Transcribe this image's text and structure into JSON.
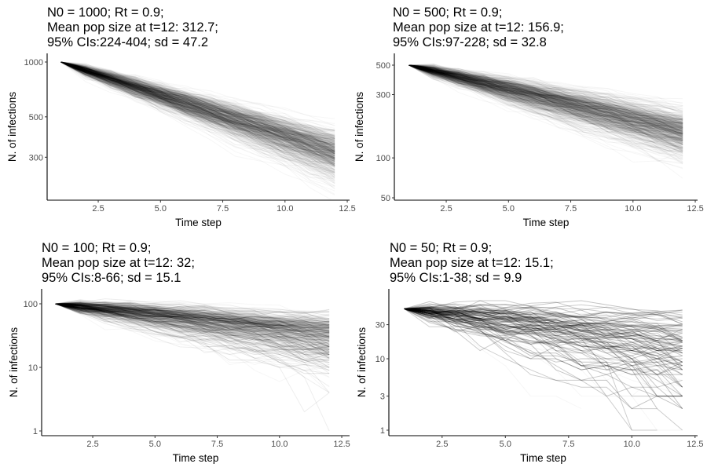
{
  "chart_data": [
    {
      "type": "line",
      "title_lines": [
        "N0 = 1000; Rt = 0.9;",
        "Mean pop size at t=12: 312.7;",
        "95% CIs:224-404; sd = 47.2"
      ],
      "N0": 1000,
      "Rt": 0.9,
      "mean_t12": 312.7,
      "ci95": [
        224,
        404
      ],
      "sd": 47.2,
      "xlabel": "Time step",
      "ylabel": "N. of infections",
      "x_ticks": [
        "2.5",
        "5.0",
        "7.5",
        "10.0",
        "12.5"
      ],
      "x_tick_values": [
        2.5,
        5,
        7.5,
        10,
        12.5
      ],
      "y_ticks": [
        "300",
        "500",
        "1000"
      ],
      "y_tick_values": [
        300,
        500,
        1000
      ],
      "y_scale": "log",
      "x_range": [
        1,
        12
      ],
      "grid": false
    },
    {
      "type": "line",
      "title_lines": [
        "N0 = 500; Rt = 0.9;",
        "Mean pop size at t=12: 156.9;",
        "95% CIs:97-228; sd = 32.8"
      ],
      "N0": 500,
      "Rt": 0.9,
      "mean_t12": 156.9,
      "ci95": [
        97,
        228
      ],
      "sd": 32.8,
      "xlabel": "Time step",
      "ylabel": "N. of infections",
      "x_ticks": [
        "2.5",
        "5.0",
        "7.5",
        "10.0",
        "12.5"
      ],
      "x_tick_values": [
        2.5,
        5,
        7.5,
        10,
        12.5
      ],
      "y_ticks": [
        "50",
        "100",
        "300",
        "500"
      ],
      "y_tick_values": [
        50,
        100,
        300,
        500
      ],
      "y_scale": "log",
      "x_range": [
        1,
        12
      ],
      "grid": false
    },
    {
      "type": "line",
      "title_lines": [
        "N0 = 100; Rt = 0.9;",
        "Mean pop size at t=12: 32;",
        "95% CIs:8-66; sd = 15.1"
      ],
      "N0": 100,
      "Rt": 0.9,
      "mean_t12": 32,
      "ci95": [
        8,
        66
      ],
      "sd": 15.1,
      "xlabel": "Time step",
      "ylabel": "N. of infections",
      "x_ticks": [
        "2.5",
        "5.0",
        "7.5",
        "10.0",
        "12.5"
      ],
      "x_tick_values": [
        2.5,
        5,
        7.5,
        10,
        12.5
      ],
      "y_ticks": [
        "1",
        "10",
        "100"
      ],
      "y_tick_values": [
        1,
        10,
        100
      ],
      "y_scale": "log",
      "x_range": [
        1,
        12
      ],
      "grid": false
    },
    {
      "type": "line",
      "title_lines": [
        "N0 = 50; Rt = 0.9;",
        "Mean pop size at t=12: 15.1;",
        "95% CIs:1-38; sd = 9.9"
      ],
      "N0": 50,
      "Rt": 0.9,
      "mean_t12": 15.1,
      "ci95": [
        1,
        38
      ],
      "sd": 9.9,
      "xlabel": "Time step",
      "ylabel": "N. of infections",
      "x_ticks": [
        "2.5",
        "5.0",
        "7.5",
        "10.0",
        "12.5"
      ],
      "x_tick_values": [
        2.5,
        5,
        7.5,
        10,
        12.5
      ],
      "y_ticks": [
        "1",
        "3",
        "10",
        "30"
      ],
      "y_tick_values": [
        1,
        3,
        10,
        30
      ],
      "y_scale": "log",
      "x_range": [
        1,
        12
      ],
      "grid": false
    }
  ],
  "colors": {
    "trajectory": "#000000",
    "axis": "#000000",
    "tick_label": "#4d4d4d"
  }
}
